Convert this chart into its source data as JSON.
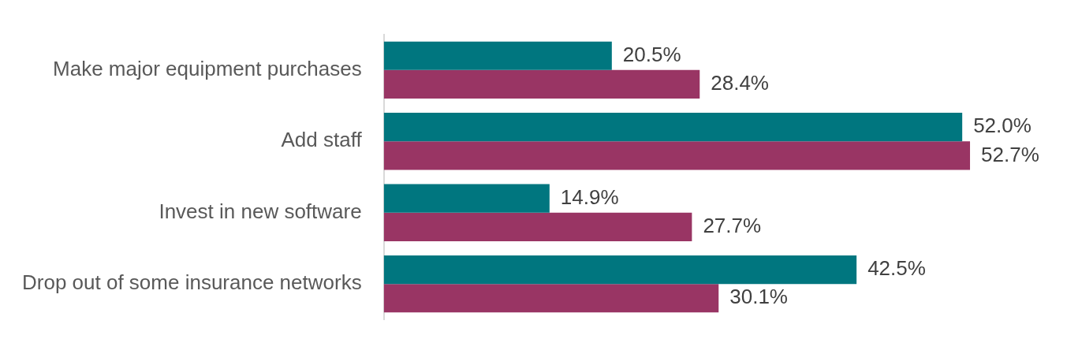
{
  "chart_data": {
    "type": "bar",
    "orientation": "horizontal",
    "categories": [
      "Make major equipment purchases",
      "Add staff",
      "Invest in new software",
      "Drop out of some insurance networks"
    ],
    "series": [
      {
        "color": "#00767f",
        "values": [
          20.5,
          52.0,
          14.9,
          42.5
        ],
        "value_labels": [
          "20.5%",
          "52.0%",
          "14.9%",
          "42.5%"
        ]
      },
      {
        "color": "#993564",
        "values": [
          28.4,
          52.7,
          27.7,
          30.1
        ],
        "value_labels": [
          "28.4%",
          "52.7%",
          "27.7%",
          "30.1%"
        ]
      }
    ],
    "legend": false,
    "tick_labels": "y"
  }
}
